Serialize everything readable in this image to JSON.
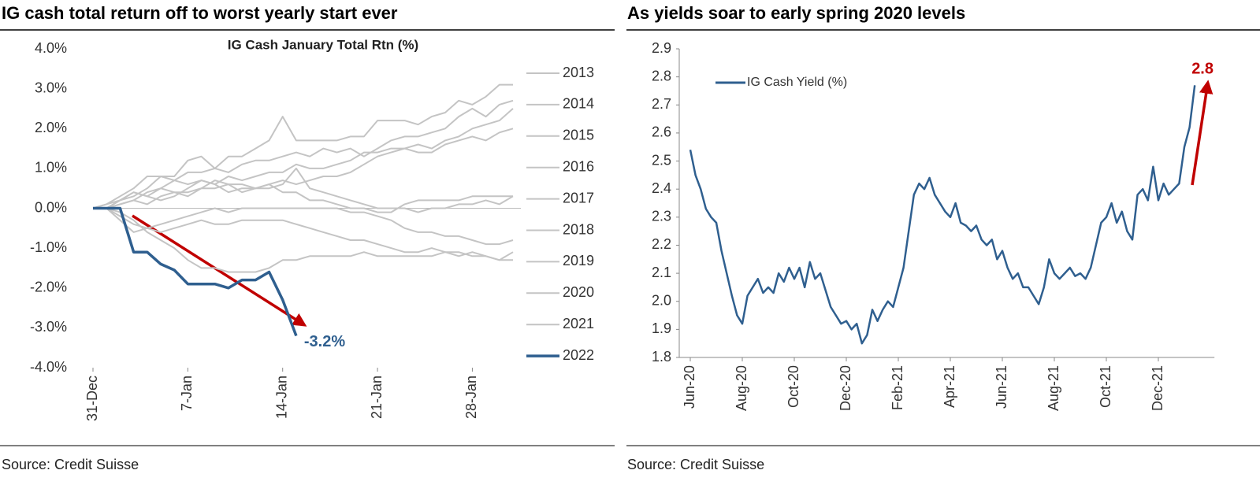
{
  "chart_data": [
    {
      "type": "line",
      "title": "IG cash total return off to worst yearly start ever",
      "subtitle": "IG Cash January Total Rtn (%)",
      "note": "Source: Credit Suisse",
      "categories": [
        "31-Dec",
        null,
        null,
        null,
        null,
        null,
        null,
        "7-Jan",
        null,
        null,
        null,
        null,
        null,
        null,
        "14-Jan",
        null,
        null,
        null,
        null,
        null,
        null,
        "21-Jan",
        null,
        null,
        null,
        null,
        null,
        null,
        "28-Jan",
        null,
        null,
        null
      ],
      "ylim": [
        -4,
        4
      ],
      "yticks": [
        {
          "value": 4,
          "label": "4.0%"
        },
        {
          "value": 3,
          "label": "3.0%"
        },
        {
          "value": 2,
          "label": "2.0%"
        },
        {
          "value": 1,
          "label": "1.0%"
        },
        {
          "value": 0,
          "label": "0.0%"
        },
        {
          "value": -1,
          "label": "-1.0%"
        },
        {
          "value": -2,
          "label": "-2.0%"
        },
        {
          "value": -3,
          "label": "-3.0%"
        },
        {
          "value": -4,
          "label": "-4.0%"
        }
      ],
      "legend": "right",
      "series": [
        {
          "name": "2013",
          "color": "#c4c4c4",
          "values": [
            0,
            0.1,
            0.3,
            0.5,
            0.8,
            0.8,
            0.8,
            1.2,
            1.3,
            1.0,
            1.3,
            1.3,
            1.5,
            1.7,
            2.3,
            1.7,
            1.7,
            1.7,
            1.7,
            1.8,
            1.8,
            2.2,
            2.2,
            2.2,
            2.1,
            2.3,
            2.4,
            2.7,
            2.6,
            2.8,
            3.1,
            3.1
          ]
        },
        {
          "name": "2014",
          "color": "#c4c4c4",
          "values": [
            0,
            0,
            0.2,
            0.3,
            0.5,
            0.8,
            0.7,
            0.9,
            0.9,
            1.0,
            0.9,
            1.1,
            1.2,
            1.2,
            1.3,
            1.4,
            1.3,
            1.5,
            1.4,
            1.5,
            1.3,
            1.5,
            1.7,
            1.8,
            1.8,
            1.9,
            2.0,
            2.3,
            2.5,
            2.3,
            2.6,
            2.7
          ]
        },
        {
          "name": "2015",
          "color": "#c4c4c4",
          "values": [
            0,
            0.1,
            0.2,
            0.4,
            0.3,
            0.5,
            0.7,
            0.6,
            0.7,
            0.6,
            0.8,
            0.7,
            0.8,
            0.9,
            0.9,
            1.1,
            1.0,
            1.0,
            1.1,
            1.2,
            1.4,
            1.4,
            1.5,
            1.5,
            1.4,
            1.4,
            1.6,
            1.7,
            1.8,
            1.7,
            1.9,
            2.0
          ]
        },
        {
          "name": "2016",
          "color": "#c4c4c4",
          "values": [
            0,
            0,
            0.1,
            0.2,
            0.1,
            0.3,
            0.4,
            0.4,
            0.5,
            0.7,
            0.6,
            0.6,
            0.5,
            0.6,
            0.7,
            0.6,
            0.7,
            0.8,
            0.8,
            0.9,
            1.1,
            1.3,
            1.4,
            1.5,
            1.6,
            1.5,
            1.7,
            1.8,
            2.0,
            2.1,
            2.2,
            2.5
          ]
        },
        {
          "name": "2017",
          "color": "#c4c4c4",
          "values": [
            0,
            0,
            0.2,
            0.4,
            0.3,
            0.2,
            0.3,
            0.5,
            0.7,
            0.6,
            0.4,
            0.5,
            0.5,
            0.6,
            0.4,
            0.4,
            0.2,
            0.2,
            0.1,
            0.0,
            0.0,
            -0.1,
            -0.1,
            0.1,
            0.2,
            0.2,
            0.2,
            0.2,
            0.3,
            0.3,
            0.3,
            0.3
          ]
        },
        {
          "name": "2018",
          "color": "#c4c4c4",
          "values": [
            0,
            0,
            0.1,
            0.2,
            0.4,
            0.5,
            0.4,
            0.3,
            0.5,
            0.5,
            0.6,
            0.4,
            0.5,
            0.5,
            0.6,
            1.0,
            0.5,
            0.4,
            0.3,
            0.2,
            0.1,
            0.0,
            0.0,
            0.0,
            -0.1,
            0.0,
            0.0,
            0.1,
            0.1,
            0.2,
            0.1,
            0.3
          ]
        },
        {
          "name": "2019",
          "color": "#c4c4c4",
          "values": [
            0,
            0,
            -0.2,
            -0.4,
            -0.5,
            -0.4,
            -0.3,
            -0.2,
            -0.1,
            0.0,
            -0.1,
            0.0,
            0.0,
            0.0,
            0.0,
            0.0,
            0.0,
            0.0,
            0.0,
            -0.1,
            -0.1,
            -0.2,
            -0.3,
            -0.5,
            -0.6,
            -0.6,
            -0.7,
            -0.7,
            -0.8,
            -0.9,
            -0.9,
            -0.8
          ]
        },
        {
          "name": "2020",
          "color": "#c4c4c4",
          "values": [
            0,
            0,
            -0.3,
            -0.6,
            -0.5,
            -0.6,
            -0.5,
            -0.4,
            -0.3,
            -0.4,
            -0.4,
            -0.3,
            -0.3,
            -0.3,
            -0.3,
            -0.4,
            -0.5,
            -0.6,
            -0.7,
            -0.8,
            -0.8,
            -0.9,
            -1.0,
            -1.1,
            -1.1,
            -1.0,
            -1.1,
            -1.2,
            -1.1,
            -1.2,
            -1.3,
            -1.1
          ]
        },
        {
          "name": "2021",
          "color": "#c4c4c4",
          "values": [
            0,
            0,
            -0.1,
            -0.3,
            -0.6,
            -0.8,
            -1.0,
            -1.3,
            -1.5,
            -1.5,
            -1.6,
            -1.6,
            -1.6,
            -1.5,
            -1.3,
            -1.3,
            -1.2,
            -1.2,
            -1.2,
            -1.2,
            -1.1,
            -1.2,
            -1.2,
            -1.2,
            -1.2,
            -1.2,
            -1.1,
            -1.1,
            -1.2,
            -1.2,
            -1.3,
            -1.3
          ]
        },
        {
          "name": "2022",
          "color": "#2f5f8f",
          "values": [
            0,
            0,
            0,
            -1.1,
            -1.1,
            -1.4,
            -1.55,
            -1.9,
            -1.9,
            -1.9,
            -2.0,
            -1.8,
            -1.8,
            -1.6,
            -2.3,
            -3.2,
            null,
            null,
            null,
            null,
            null,
            null,
            null,
            null,
            null,
            null,
            null,
            null,
            null,
            null,
            null,
            null
          ]
        }
      ],
      "annotations": [
        {
          "text": "-3.2%",
          "color": "#2f5f8f"
        }
      ]
    },
    {
      "type": "line",
      "title": "As yields soar to early spring 2020 levels",
      "note": "Source: Credit Suisse",
      "categories": [
        "Jun-20",
        null,
        null,
        null,
        null,
        null,
        null,
        null,
        null,
        null,
        "Aug-20",
        null,
        null,
        null,
        null,
        null,
        null,
        null,
        null,
        null,
        "Oct-20",
        null,
        null,
        null,
        null,
        null,
        null,
        null,
        null,
        null,
        "Dec-20",
        null,
        null,
        null,
        null,
        null,
        null,
        null,
        null,
        null,
        "Feb-21",
        null,
        null,
        null,
        null,
        null,
        null,
        null,
        null,
        null,
        "Apr-21",
        null,
        null,
        null,
        null,
        null,
        null,
        null,
        null,
        null,
        "Jun-21",
        null,
        null,
        null,
        null,
        null,
        null,
        null,
        null,
        null,
        "Aug-21",
        null,
        null,
        null,
        null,
        null,
        null,
        null,
        null,
        null,
        "Oct-21",
        null,
        null,
        null,
        null,
        null,
        null,
        null,
        null,
        null,
        "Dec-21",
        null,
        null,
        null,
        null,
        null,
        null,
        null
      ],
      "ylim": [
        1.8,
        2.9
      ],
      "yticks": [
        2.9,
        2.8,
        2.7,
        2.6,
        2.5,
        2.4,
        2.3,
        2.2,
        2.1,
        {
          "value": 2,
          "label": "2.0"
        },
        1.9,
        1.8
      ],
      "legend": "upper left",
      "series": [
        {
          "name": "IG Cash Yield (%)",
          "color": "#2f5f8f",
          "values": [
            2.54,
            2.45,
            2.4,
            2.33,
            2.3,
            2.28,
            2.18,
            2.1,
            2.02,
            1.95,
            1.92,
            2.02,
            2.05,
            2.08,
            2.03,
            2.05,
            2.03,
            2.1,
            2.07,
            2.12,
            2.08,
            2.12,
            2.05,
            2.14,
            2.08,
            2.1,
            2.04,
            1.98,
            1.95,
            1.92,
            1.93,
            1.9,
            1.92,
            1.85,
            1.88,
            1.97,
            1.93,
            1.97,
            2.0,
            1.98,
            2.05,
            2.12,
            2.25,
            2.38,
            2.42,
            2.4,
            2.44,
            2.38,
            2.35,
            2.32,
            2.3,
            2.35,
            2.28,
            2.27,
            2.25,
            2.27,
            2.22,
            2.2,
            2.22,
            2.15,
            2.18,
            2.12,
            2.08,
            2.1,
            2.05,
            2.05,
            2.02,
            1.99,
            2.05,
            2.15,
            2.1,
            2.08,
            2.1,
            2.12,
            2.09,
            2.1,
            2.08,
            2.12,
            2.2,
            2.28,
            2.3,
            2.35,
            2.28,
            2.32,
            2.25,
            2.22,
            2.38,
            2.4,
            2.36,
            2.48,
            2.36,
            2.42,
            2.38,
            2.4,
            2.42,
            2.55,
            2.62,
            2.77
          ]
        }
      ],
      "annotations": [
        {
          "text": "2.8",
          "color": "#c00000"
        }
      ]
    }
  ]
}
